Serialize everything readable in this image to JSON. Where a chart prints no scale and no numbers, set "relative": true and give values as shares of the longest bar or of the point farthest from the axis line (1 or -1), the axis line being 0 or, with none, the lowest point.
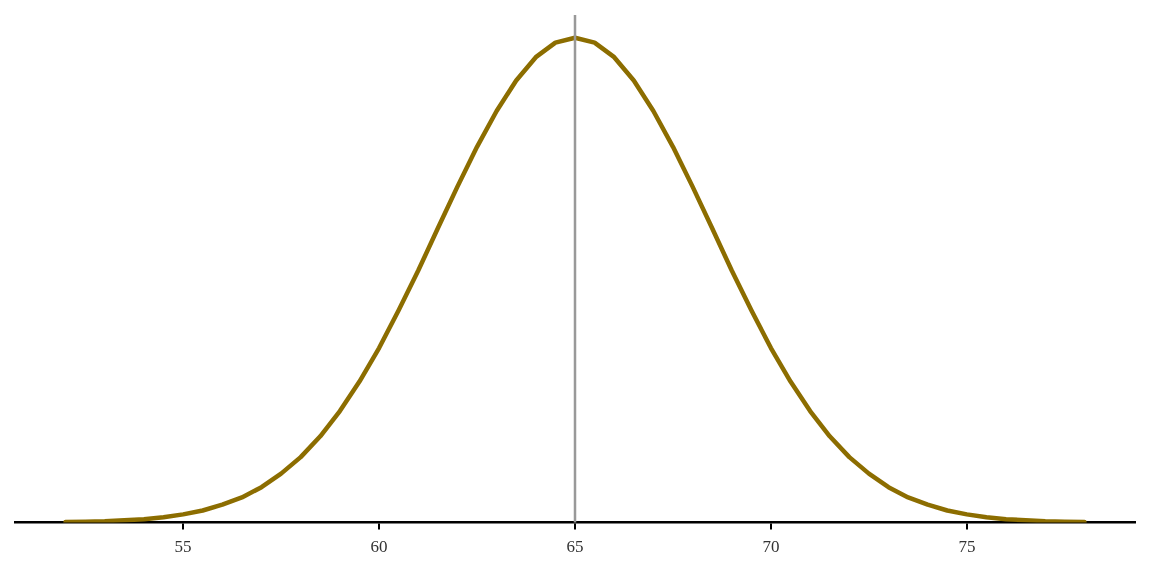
{
  "chart_data": {
    "type": "line",
    "relative": true,
    "x": [
      52,
      52.5,
      53,
      53.5,
      54,
      54.5,
      55,
      55.5,
      56,
      56.5,
      57,
      57.5,
      58,
      58.5,
      59,
      59.5,
      60,
      60.5,
      61,
      61.5,
      62,
      62.5,
      63,
      63.5,
      64,
      64.5,
      65,
      65.5,
      66,
      66.5,
      67,
      67.5,
      68,
      68.5,
      69,
      69.5,
      70,
      70.5,
      71,
      71.5,
      72,
      72.5,
      73,
      73.5,
      74,
      74.5,
      75,
      75.5,
      76,
      76.5,
      77,
      77.5,
      78
    ],
    "series": [
      {
        "color": "#8c6d00",
        "values": [
          0.001,
          0.002,
          0.003,
          0.005,
          0.007,
          0.011,
          0.017,
          0.025,
          0.037,
          0.052,
          0.073,
          0.101,
          0.135,
          0.178,
          0.23,
          0.291,
          0.36,
          0.438,
          0.52,
          0.607,
          0.693,
          0.775,
          0.849,
          0.912,
          0.96,
          0.99,
          1,
          0.99,
          0.96,
          0.912,
          0.849,
          0.775,
          0.693,
          0.607,
          0.52,
          0.438,
          0.36,
          0.291,
          0.23,
          0.178,
          0.135,
          0.101,
          0.073,
          0.052,
          0.037,
          0.025,
          0.017,
          0.011,
          0.007,
          0.005,
          0.003,
          0.002,
          0.001
        ]
      }
    ],
    "xlim": [
      50.71,
      79.29
    ],
    "xticks": [
      55,
      60,
      65,
      70,
      75
    ],
    "ref_lines": [
      {
        "axis": "x",
        "value": 65,
        "color": "#999999"
      }
    ],
    "grid": false,
    "legend": false,
    "marker": "none",
    "line_style": "solid"
  }
}
